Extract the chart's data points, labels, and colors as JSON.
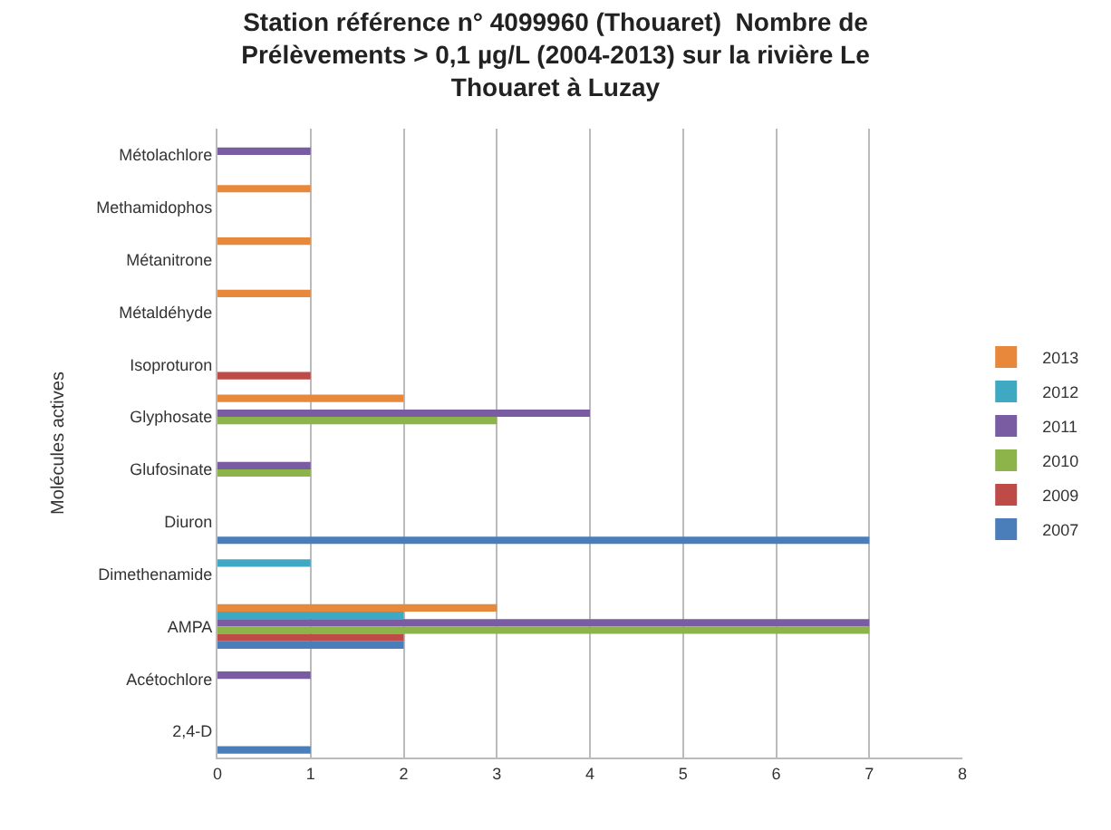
{
  "chart_data": {
    "type": "bar",
    "orientation": "horizontal",
    "title": "Station référence n° 4099960 (Thouaret)  Nombre de\nPrélèvements > 0,1 µg/L (2004-2013) sur la rivière Le\nThouaret à Luzay",
    "ylabel": "Molécules actives",
    "categories": [
      "Métolachlore",
      "Methamidophos",
      "Métanitrone",
      "Métaldéhyde",
      "Isoproturon",
      "Glyphosate",
      "Glufosinate",
      "Diuron",
      "Dimethenamide",
      "AMPA",
      "Acétochlore",
      "2,4-D"
    ],
    "series": [
      {
        "name": "2013",
        "color": "#e8883a",
        "values": [
          null,
          1,
          1,
          1,
          null,
          2,
          null,
          null,
          null,
          3,
          null,
          null
        ]
      },
      {
        "name": "2012",
        "color": "#3fa9c4",
        "values": [
          null,
          null,
          null,
          null,
          null,
          null,
          null,
          null,
          1,
          2,
          null,
          null
        ]
      },
      {
        "name": "2011",
        "color": "#7a5ca3",
        "values": [
          1,
          null,
          null,
          null,
          null,
          4,
          1,
          null,
          null,
          7,
          1,
          null
        ]
      },
      {
        "name": "2010",
        "color": "#8db44a",
        "values": [
          null,
          null,
          null,
          null,
          null,
          3,
          1,
          null,
          null,
          7,
          null,
          null
        ]
      },
      {
        "name": "2009",
        "color": "#be4b48",
        "values": [
          null,
          null,
          null,
          null,
          1,
          null,
          null,
          null,
          null,
          2,
          null,
          null
        ]
      },
      {
        "name": "2007",
        "color": "#4a7ebb",
        "values": [
          null,
          null,
          null,
          null,
          null,
          null,
          null,
          7,
          null,
          2,
          null,
          1
        ]
      }
    ],
    "xlim": [
      0,
      8
    ],
    "xticks": [
      0,
      1,
      2,
      3,
      4,
      5,
      6,
      7,
      8
    ],
    "grid": "x",
    "legend": "right"
  }
}
